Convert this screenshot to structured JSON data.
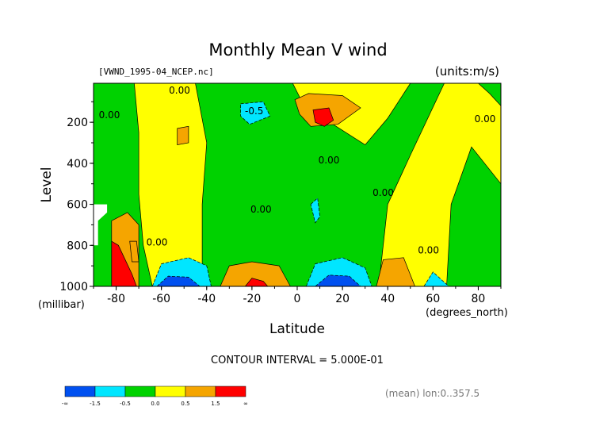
{
  "chart_data": {
    "type": "heatmap",
    "title": "Monthly Mean V wind",
    "subtitle_left": "[VWND_1995-04_NCEP.nc]",
    "subtitle_right": "(units:m/s)",
    "xlabel": "Latitude",
    "x_unit": "(degrees_north)",
    "ylabel": "Level",
    "y_unit": "(millibar)",
    "xlim": [
      -90,
      90
    ],
    "ylim": [
      1000,
      10
    ],
    "x_ticks": [
      -80,
      -60,
      -40,
      -20,
      0,
      20,
      40,
      60,
      80
    ],
    "x_tick_labels": [
      "-80",
      "-60",
      "-40",
      "-20",
      "0",
      "20",
      "40",
      "60",
      "80"
    ],
    "y_ticks": [
      200,
      400,
      600,
      800,
      1000
    ],
    "y_tick_labels": [
      "200",
      "400",
      "600",
      "800",
      "1000"
    ],
    "contour_note": "CONTOUR INTERVAL = 5.000E-01",
    "footer_note": "(mean) lon:0..357.5",
    "contour_labels": [
      {
        "text": "0.00",
        "x": -52,
        "y": 60
      },
      {
        "text": "0.00",
        "x": -83,
        "y": 180
      },
      {
        "text": "0.00",
        "x": 14,
        "y": 400
      },
      {
        "text": "0.00",
        "x": -16,
        "y": 640
      },
      {
        "text": "0.00",
        "x": 38,
        "y": 560
      },
      {
        "text": "0.00",
        "x": -62,
        "y": 800
      },
      {
        "text": "0.00",
        "x": 58,
        "y": 840
      },
      {
        "text": "0.00",
        "x": 83,
        "y": 200
      },
      {
        "text": "-0.5",
        "x": -19,
        "y": 160
      }
    ],
    "legend": {
      "bins": [
        {
          "color": "#0050f0"
        },
        {
          "color": "#00e6ff"
        },
        {
          "color": "#00d200"
        },
        {
          "color": "#ffff00"
        },
        {
          "color": "#f5a500"
        },
        {
          "color": "#ff0000"
        }
      ],
      "tick_labels": [
        "-∞",
        "-1.5",
        "-0.5",
        "0.0",
        "0.5",
        "1.5",
        "∞"
      ]
    },
    "regions": [
      {
        "level": "negative",
        "color": "#00d200",
        "points": [
          [
            -90,
            10
          ],
          [
            -72,
            10
          ],
          [
            -70,
            250
          ],
          [
            -70,
            550
          ],
          [
            -68,
            800
          ],
          [
            -64,
            1000
          ],
          [
            -90,
            1000
          ]
        ]
      },
      {
        "level": "negative",
        "color": "#00d200",
        "points": [
          [
            -45,
            10
          ],
          [
            -2,
            10
          ],
          [
            3,
            120
          ],
          [
            30,
            310
          ],
          [
            40,
            180
          ],
          [
            50,
            10
          ],
          [
            65,
            10
          ],
          [
            62,
            80
          ],
          [
            50,
            360
          ],
          [
            40,
            600
          ],
          [
            36,
            1000
          ],
          [
            6,
            1000
          ],
          [
            -10,
            1000
          ],
          [
            -27,
            1000
          ],
          [
            -40,
            1000
          ],
          [
            -42,
            900
          ],
          [
            -42,
            600
          ],
          [
            -40,
            300
          ]
        ]
      },
      {
        "level": "negative",
        "color": "#00d200",
        "points": [
          [
            66,
            1000
          ],
          [
            68,
            600
          ],
          [
            77,
            320
          ],
          [
            90,
            500
          ],
          [
            90,
            1000
          ]
        ]
      },
      {
        "level": "negative",
        "color": "#00d200",
        "points": [
          [
            80,
            10
          ],
          [
            90,
            10
          ],
          [
            90,
            120
          ],
          [
            85,
            60
          ]
        ]
      },
      {
        "level": "negative",
        "color": "#00e6ff",
        "points": [
          [
            -25,
            110
          ],
          [
            -15,
            100
          ],
          [
            -12,
            170
          ],
          [
            -21,
            210
          ],
          [
            -25,
            170
          ]
        ]
      },
      {
        "level": "negative",
        "color": "#00e6ff",
        "points": [
          [
            -64,
            1000
          ],
          [
            -60,
            890
          ],
          [
            -48,
            860
          ],
          [
            -40,
            900
          ],
          [
            -38,
            1000
          ]
        ]
      },
      {
        "level": "negative",
        "color": "#00e6ff",
        "points": [
          [
            4,
            1000
          ],
          [
            8,
            890
          ],
          [
            20,
            860
          ],
          [
            30,
            910
          ],
          [
            33,
            1000
          ]
        ]
      },
      {
        "level": "negative",
        "color": "#00e6ff",
        "points": [
          [
            56,
            1000
          ],
          [
            60,
            930
          ],
          [
            67,
            1000
          ]
        ]
      },
      {
        "level": "negative",
        "color": "#00e6ff",
        "points": [
          [
            6,
            600
          ],
          [
            9,
            570
          ],
          [
            10,
            660
          ],
          [
            8,
            690
          ]
        ]
      },
      {
        "level": "negative",
        "color": "#0050f0",
        "points": [
          [
            -62,
            1000
          ],
          [
            -57,
            950
          ],
          [
            -48,
            955
          ],
          [
            -43,
            1000
          ]
        ]
      },
      {
        "level": "negative",
        "color": "#0050f0",
        "points": [
          [
            8,
            1000
          ],
          [
            14,
            945
          ],
          [
            23,
            950
          ],
          [
            28,
            1000
          ]
        ]
      },
      {
        "level": "positive",
        "color": "#f5a500",
        "points": [
          [
            -1,
            90
          ],
          [
            5,
            60
          ],
          [
            20,
            70
          ],
          [
            28,
            130
          ],
          [
            18,
            210
          ],
          [
            6,
            220
          ],
          [
            1,
            160
          ]
        ]
      },
      {
        "level": "positive",
        "color": "#ff0000",
        "points": [
          [
            7,
            140
          ],
          [
            14,
            130
          ],
          [
            16,
            190
          ],
          [
            12,
            220
          ],
          [
            8,
            200
          ]
        ]
      },
      {
        "level": "positive",
        "color": "#f5a500",
        "points": [
          [
            -53,
            230
          ],
          [
            -48,
            220
          ],
          [
            -48,
            300
          ],
          [
            -53,
            310
          ]
        ]
      },
      {
        "level": "positive",
        "color": "#f5a500",
        "points": [
          [
            -82,
            1000
          ],
          [
            -82,
            680
          ],
          [
            -75,
            640
          ],
          [
            -70,
            700
          ],
          [
            -70,
            1000
          ]
        ]
      },
      {
        "level": "positive",
        "color": "#f5a500",
        "points": [
          [
            -74,
            780
          ],
          [
            -71,
            780
          ],
          [
            -70,
            880
          ],
          [
            -73,
            880
          ]
        ]
      },
      {
        "level": "positive",
        "color": "#ff0000",
        "points": [
          [
            -82,
            1000
          ],
          [
            -82,
            780
          ],
          [
            -79,
            800
          ],
          [
            -73,
            940
          ],
          [
            -71,
            1000
          ]
        ]
      },
      {
        "level": "positive",
        "color": "#f5a500",
        "points": [
          [
            -34,
            1000
          ],
          [
            -30,
            900
          ],
          [
            -20,
            880
          ],
          [
            -8,
            900
          ],
          [
            -3,
            1000
          ]
        ]
      },
      {
        "level": "positive",
        "color": "#ff0000",
        "points": [
          [
            -23,
            1000
          ],
          [
            -20,
            960
          ],
          [
            -15,
            975
          ],
          [
            -13,
            1000
          ]
        ]
      },
      {
        "level": "positive",
        "color": "#f5a500",
        "points": [
          [
            35,
            1000
          ],
          [
            38,
            870
          ],
          [
            47,
            860
          ],
          [
            52,
            1000
          ]
        ]
      },
      {
        "level": "missing",
        "color": "#ffffff",
        "points": [
          [
            -90,
            600
          ],
          [
            -84,
            600
          ],
          [
            -84,
            640
          ],
          [
            -88,
            680
          ],
          [
            -88,
            800
          ],
          [
            -90,
            800
          ]
        ]
      }
    ]
  }
}
